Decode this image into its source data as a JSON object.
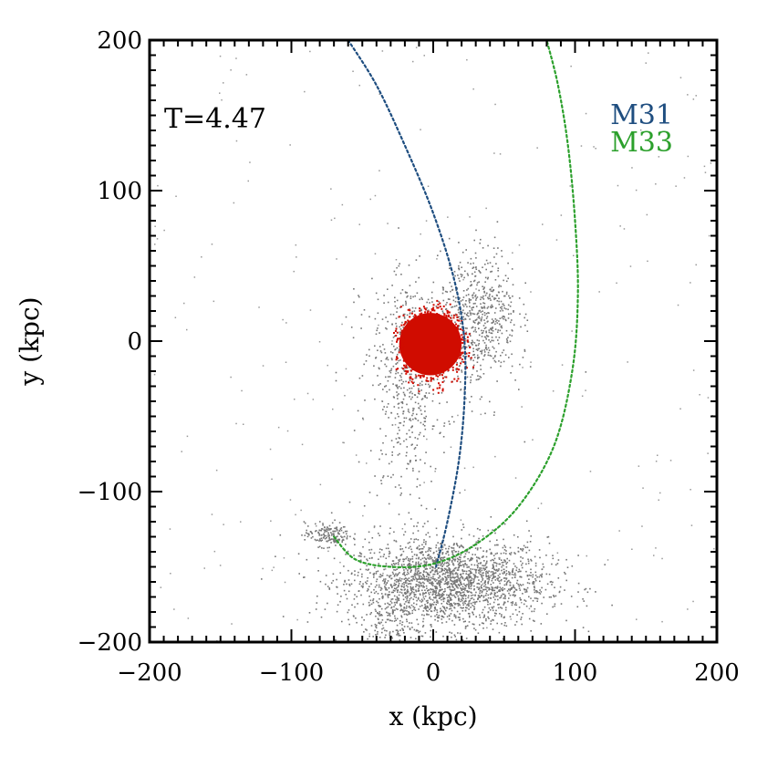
{
  "chart_data": {
    "type": "scatter",
    "xlabel": "x (kpc)",
    "ylabel": "y (kpc)",
    "xlim": [
      -200,
      200
    ],
    "ylim": [
      -200,
      200
    ],
    "x_ticks": [
      -200,
      -100,
      0,
      100,
      200
    ],
    "y_ticks": [
      -200,
      -100,
      0,
      100,
      200
    ],
    "x_tick_labels": [
      "−200",
      "−100",
      "0",
      "100",
      "200"
    ],
    "y_tick_labels": [
      "−200",
      "−100",
      "0",
      "100",
      "200"
    ],
    "annotation": "T=4.47",
    "legend": [
      {
        "name": "M31",
        "color": "#1f4e80"
      },
      {
        "name": "M33",
        "color": "#2ca02c"
      }
    ],
    "series": [
      {
        "name": "M31",
        "style": "dotted-line",
        "color": "#1f4e80",
        "points": [
          [
            -60,
            200
          ],
          [
            -40,
            170
          ],
          [
            -20,
            130
          ],
          [
            0,
            85
          ],
          [
            15,
            40
          ],
          [
            22,
            0
          ],
          [
            22,
            -40
          ],
          [
            18,
            -80
          ],
          [
            10,
            -120
          ],
          [
            2,
            -150
          ]
        ]
      },
      {
        "name": "M33",
        "style": "dotted-line",
        "color": "#2ca02c",
        "points": [
          [
            -70,
            -130
          ],
          [
            -55,
            -145
          ],
          [
            -30,
            -150
          ],
          [
            0,
            -148
          ],
          [
            30,
            -135
          ],
          [
            60,
            -110
          ],
          [
            85,
            -70
          ],
          [
            98,
            -20
          ],
          [
            102,
            30
          ],
          [
            100,
            80
          ],
          [
            95,
            130
          ],
          [
            88,
            170
          ],
          [
            80,
            200
          ]
        ]
      },
      {
        "name": "red particles",
        "style": "blob",
        "color": "#d00c00",
        "center": [
          -2,
          -2
        ],
        "radius": 22
      },
      {
        "name": "grey particles",
        "style": "scatter",
        "color": "#777777",
        "clumps": [
          {
            "center": [
              10,
              -160
            ],
            "sx": 35,
            "sy": 15,
            "n": 2200
          },
          {
            "center": [
              -75,
              -128
            ],
            "sx": 8,
            "sy": 4,
            "n": 160
          },
          {
            "center": [
              35,
              20
            ],
            "sx": 12,
            "sy": 22,
            "n": 450
          },
          {
            "center": [
              -20,
              -40
            ],
            "sx": 12,
            "sy": 35,
            "n": 350
          },
          {
            "center": [
              0,
              0
            ],
            "sx": 25,
            "sy": 22,
            "n": 450
          },
          {
            "center": [
              -25,
              -190
            ],
            "sx": 12,
            "sy": 18,
            "n": 220
          }
        ],
        "background_n": 260
      }
    ]
  }
}
